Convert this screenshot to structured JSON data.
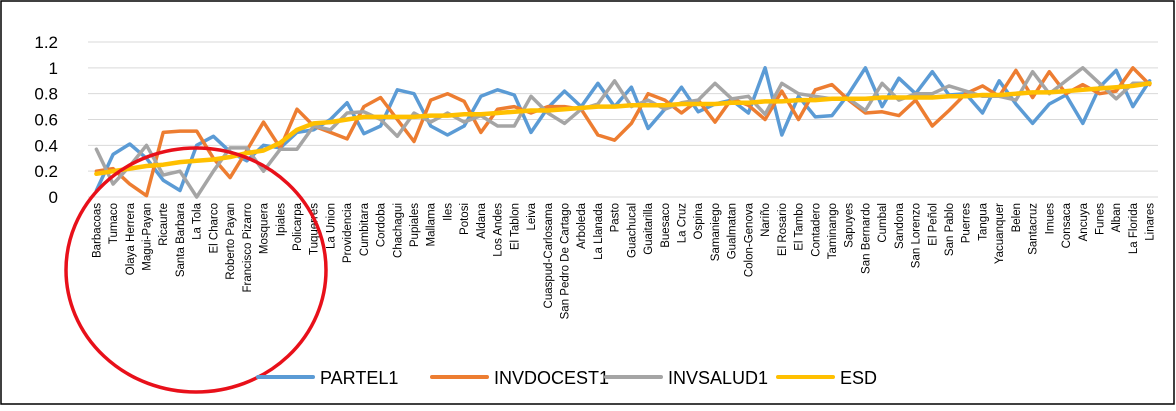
{
  "chart_data": {
    "type": "line",
    "title": "",
    "xlabel": "",
    "ylabel": "",
    "ylim": [
      0,
      1.2
    ],
    "yticks": [
      "0",
      "0.2",
      "0.4",
      "0.6",
      "0.8",
      "1",
      "1.2"
    ],
    "grid": true,
    "legend_position": "bottom",
    "categories": [
      "Barbacoas",
      "Tumaco",
      "Olaya Herrera",
      "Magui-Payan",
      "Ricaurte",
      "Santa Barbara",
      "La Tola",
      "El Charco",
      "Roberto Payan",
      "Francisco Pizarro",
      "Mosquera",
      "Ipiales",
      "Policarpa",
      "Tuquerres",
      "La Union",
      "Providencia",
      "Cumbitara",
      "Cordoba",
      "Chachagui",
      "Pupiales",
      "Mallama",
      "Iles",
      "Potosi",
      "Aldana",
      "Los Andes",
      "El Tablon",
      "Leiva",
      "Cuaspud-Carlosama",
      "San Pedro De Cartago",
      "Arboleda",
      "La Llanada",
      "Pasto",
      "Guachucal",
      "Guaitarilla",
      "Buesaco",
      "La Cruz",
      "Ospina",
      "Samaniego",
      "Gualmatan",
      "Colon-Genova",
      "Nariño",
      "El Rosario",
      "El Tambo",
      "Contadero",
      "Taminango",
      "Sapuyes",
      "San Bernardo",
      "Cumbal",
      "Sandona",
      "San Lorenzo",
      "El Peñol",
      "San Pablo",
      "Puerres",
      "Tangua",
      "Yacuanquer",
      "Belen",
      "Santacruz",
      "Imues",
      "Consaca",
      "Ancuya",
      "Funes",
      "Alban",
      "La Florida",
      "Linares"
    ],
    "series": [
      {
        "name": "PARTEL1",
        "color": "#5B9BD5",
        "values": [
          0.05,
          0.33,
          0.41,
          0.3,
          0.13,
          0.05,
          0.4,
          0.47,
          0.35,
          0.28,
          0.4,
          0.38,
          0.5,
          0.52,
          0.6,
          0.73,
          0.49,
          0.55,
          0.83,
          0.8,
          0.55,
          0.48,
          0.55,
          0.78,
          0.83,
          0.79,
          0.5,
          0.69,
          0.82,
          0.7,
          0.88,
          0.7,
          0.85,
          0.53,
          0.68,
          0.85,
          0.66,
          0.72,
          0.75,
          0.65,
          1.0,
          0.48,
          0.78,
          0.62,
          0.63,
          0.8,
          1.0,
          0.7,
          0.92,
          0.8,
          0.97,
          0.79,
          0.8,
          0.65,
          0.9,
          0.72,
          0.57,
          0.72,
          0.79,
          0.57,
          0.85,
          0.98,
          0.7,
          0.9
        ]
      },
      {
        "name": "INVDOCEST1",
        "color": "#ED7D31",
        "values": [
          0.2,
          0.22,
          0.1,
          0.01,
          0.5,
          0.51,
          0.51,
          0.3,
          0.15,
          0.36,
          0.58,
          0.38,
          0.68,
          0.55,
          0.5,
          0.45,
          0.7,
          0.77,
          0.6,
          0.43,
          0.75,
          0.8,
          0.74,
          0.5,
          0.68,
          0.7,
          0.65,
          0.7,
          0.7,
          0.68,
          0.48,
          0.44,
          0.57,
          0.8,
          0.75,
          0.65,
          0.75,
          0.58,
          0.76,
          0.71,
          0.6,
          0.82,
          0.6,
          0.83,
          0.87,
          0.75,
          0.65,
          0.66,
          0.63,
          0.75,
          0.55,
          0.67,
          0.8,
          0.86,
          0.78,
          0.98,
          0.77,
          0.97,
          0.8,
          0.87,
          0.8,
          0.82,
          1.0,
          0.87
        ]
      },
      {
        "name": "INVSALUD1",
        "color": "#A5A5A5",
        "values": [
          0.37,
          0.1,
          0.24,
          0.4,
          0.17,
          0.2,
          0.0,
          0.2,
          0.38,
          0.38,
          0.2,
          0.37,
          0.37,
          0.55,
          0.52,
          0.65,
          0.66,
          0.6,
          0.47,
          0.65,
          0.58,
          0.65,
          0.58,
          0.63,
          0.55,
          0.55,
          0.78,
          0.65,
          0.57,
          0.68,
          0.72,
          0.9,
          0.7,
          0.75,
          0.68,
          0.73,
          0.75,
          0.88,
          0.76,
          0.78,
          0.64,
          0.88,
          0.8,
          0.78,
          0.76,
          0.76,
          0.67,
          0.88,
          0.75,
          0.8,
          0.8,
          0.86,
          0.82,
          0.78,
          0.78,
          0.75,
          0.97,
          0.8,
          0.9,
          1.0,
          0.88,
          0.76,
          0.88,
          0.88
        ]
      },
      {
        "name": "ESD",
        "color": "#FFC000",
        "values": [
          0.18,
          0.2,
          0.22,
          0.24,
          0.25,
          0.27,
          0.28,
          0.29,
          0.31,
          0.34,
          0.36,
          0.42,
          0.52,
          0.57,
          0.58,
          0.6,
          0.62,
          0.62,
          0.62,
          0.62,
          0.63,
          0.63,
          0.64,
          0.64,
          0.65,
          0.66,
          0.67,
          0.67,
          0.68,
          0.69,
          0.7,
          0.7,
          0.71,
          0.71,
          0.71,
          0.72,
          0.72,
          0.72,
          0.73,
          0.73,
          0.74,
          0.74,
          0.75,
          0.75,
          0.76,
          0.76,
          0.76,
          0.77,
          0.77,
          0.77,
          0.77,
          0.78,
          0.78,
          0.79,
          0.79,
          0.8,
          0.81,
          0.81,
          0.82,
          0.83,
          0.84,
          0.85,
          0.86,
          0.88
        ]
      }
    ]
  }
}
